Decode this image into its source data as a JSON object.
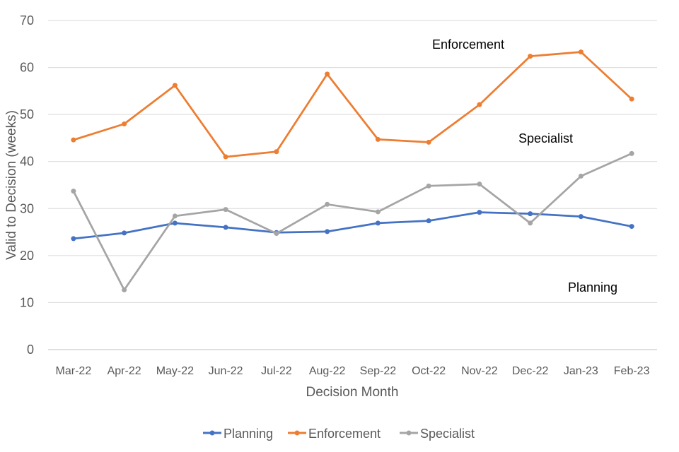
{
  "chart_data": {
    "type": "line",
    "title": "",
    "xlabel": "Decision Month",
    "ylabel": "Valid to Decision (weeks)",
    "ylim": [
      0,
      70
    ],
    "yticks": [
      0,
      10,
      20,
      30,
      40,
      50,
      60,
      70
    ],
    "grid": true,
    "legend_position": "bottom",
    "categories": [
      "Mar-22",
      "Apr-22",
      "May-22",
      "Jun-22",
      "Jul-22",
      "Aug-22",
      "Sep-22",
      "Oct-22",
      "Nov-22",
      "Dec-22",
      "Jan-23",
      "Feb-23"
    ],
    "series": [
      {
        "name": "Planning",
        "color": "#4472C4",
        "values": [
          23.6,
          24.8,
          26.9,
          26.0,
          24.9,
          25.1,
          26.9,
          27.4,
          29.2,
          28.9,
          28.3,
          26.2
        ]
      },
      {
        "name": "Enforcement",
        "color": "#ED7D31",
        "values": [
          44.6,
          48.0,
          56.2,
          41.0,
          42.1,
          58.6,
          44.7,
          44.1,
          52.1,
          62.4,
          63.3,
          53.3
        ]
      },
      {
        "name": "Specialist",
        "color": "#A5A5A5",
        "values": [
          33.7,
          12.7,
          28.4,
          29.8,
          24.7,
          30.9,
          29.3,
          34.8,
          35.2,
          26.9,
          36.9,
          41.7
        ]
      }
    ],
    "annotations": [
      "Enforcement",
      "Specialist",
      "Planning"
    ]
  },
  "colors": {
    "grid": "#D9D9D9",
    "axis": "#BFBFBF",
    "text": "#595959"
  }
}
